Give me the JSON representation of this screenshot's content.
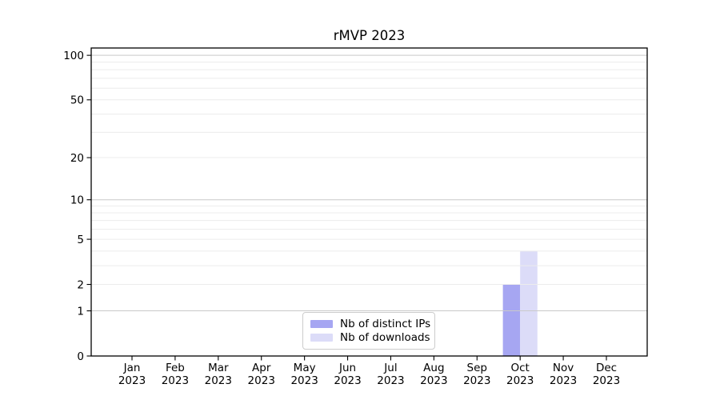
{
  "colors": {
    "background": "#ffffff",
    "axis": "#000000",
    "major_grid": "#c9c9c9",
    "minor_grid": "#ececec",
    "legend_border": "#cccccc",
    "bar_distinct_ips": "#a6a6f2",
    "bar_downloads": "#dcdcf8"
  },
  "chart_data": {
    "type": "bar",
    "title": "rMVP 2023",
    "months": [
      "Jan",
      "Feb",
      "Mar",
      "Apr",
      "May",
      "Jun",
      "Jul",
      "Aug",
      "Sep",
      "Oct",
      "Nov",
      "Dec"
    ],
    "year": "2023",
    "series": [
      {
        "name": "Nb of distinct IPs",
        "color": "#a6a6f2",
        "values": [
          0,
          0,
          0,
          0,
          0,
          0,
          0,
          0,
          0,
          2,
          0,
          0
        ]
      },
      {
        "name": "Nb of downloads",
        "color": "#dcdcf8",
        "values": [
          0,
          0,
          0,
          0,
          0,
          0,
          0,
          0,
          0,
          4,
          0,
          0
        ]
      }
    ],
    "xlabel": "",
    "ylabel": "",
    "y_scale": "log1p",
    "ylim": [
      0,
      112
    ],
    "y_ticks": [
      0,
      1,
      2,
      5,
      10,
      20,
      50,
      100
    ],
    "y_major_gridlines": [
      1,
      10,
      100
    ],
    "y_minor_gridlines": [
      2,
      3,
      4,
      5,
      6,
      7,
      8,
      9,
      20,
      30,
      40,
      50,
      60,
      70,
      80,
      90
    ],
    "grid": true,
    "legend_position": "lower center"
  }
}
